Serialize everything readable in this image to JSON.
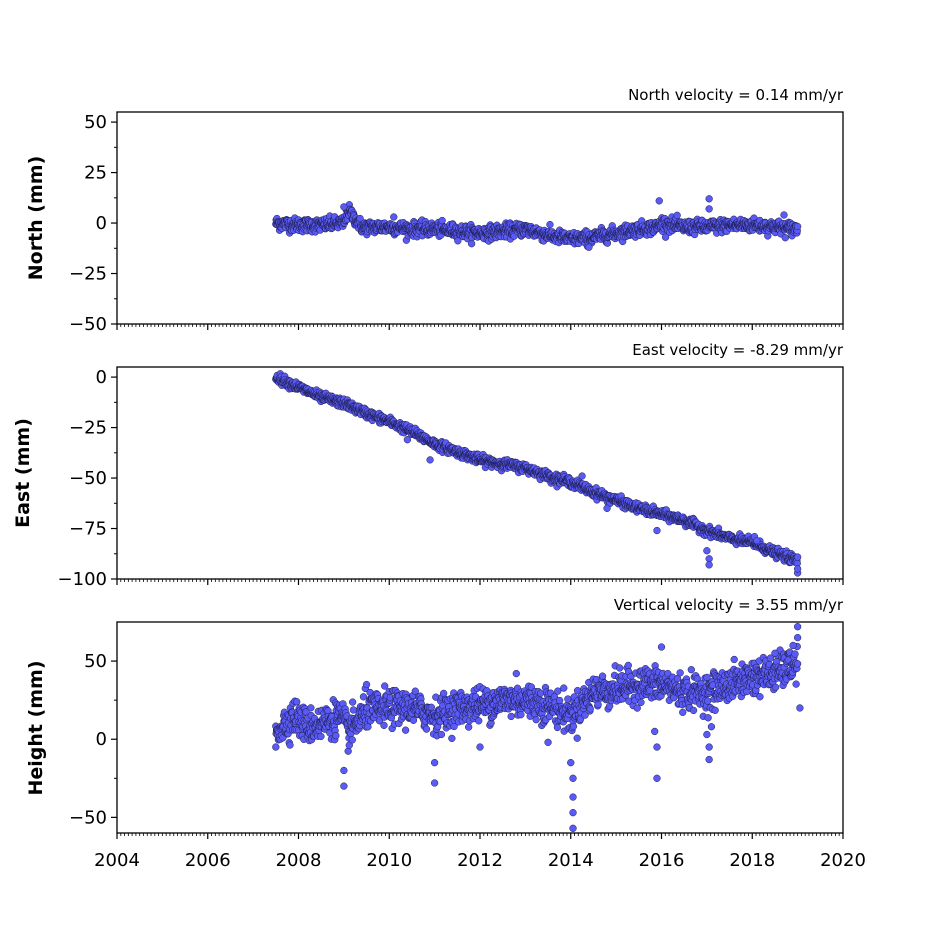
{
  "chart_data": [
    {
      "type": "scatter",
      "key": "north",
      "title": "",
      "xlabel": "",
      "ylabel": "North (mm)",
      "annotation": "North velocity = 0.14 mm/yr",
      "xlim": [
        2004,
        2020
      ],
      "ylim": [
        -50,
        55
      ],
      "yticks": [
        50,
        25,
        0,
        -25,
        -50
      ],
      "ytick_labels": [
        "50",
        "25",
        "0",
        "−25",
        "−50"
      ],
      "show_xtick_labels": false,
      "series": [
        {
          "type": "trend",
          "points": [
            [
              2007.5,
              0
            ],
            [
              2008.0,
              -1
            ],
            [
              2008.5,
              -1
            ],
            [
              2009.0,
              0
            ],
            [
              2009.1,
              6
            ],
            [
              2009.4,
              -2
            ],
            [
              2010.0,
              -2
            ],
            [
              2010.5,
              -3
            ],
            [
              2011.0,
              -3
            ],
            [
              2011.5,
              -4
            ],
            [
              2012.0,
              -5
            ],
            [
              2012.5,
              -4
            ],
            [
              2013.0,
              -3
            ],
            [
              2013.5,
              -6
            ],
            [
              2014.0,
              -8
            ],
            [
              2014.5,
              -7
            ],
            [
              2015.0,
              -5
            ],
            [
              2015.5,
              -3
            ],
            [
              2015.9,
              -2
            ],
            [
              2016.0,
              0
            ],
            [
              2016.5,
              -2
            ],
            [
              2017.0,
              -2
            ],
            [
              2017.5,
              -1
            ],
            [
              2018.0,
              -1
            ],
            [
              2018.5,
              -2
            ],
            [
              2019.0,
              -3
            ]
          ],
          "spread": 3
        },
        {
          "type": "points",
          "points": [
            [
              2009.0,
              8
            ],
            [
              2015.95,
              11
            ],
            [
              2017.05,
              12
            ],
            [
              2017.05,
              7
            ],
            [
              2014.4,
              -12
            ],
            [
              2018.7,
              4
            ],
            [
              2010.1,
              3
            ]
          ]
        }
      ]
    },
    {
      "type": "scatter",
      "key": "east",
      "title": "",
      "xlabel": "",
      "ylabel": "East (mm)",
      "annotation": "East velocity = -8.29 mm/yr",
      "xlim": [
        2004,
        2020
      ],
      "ylim": [
        -100,
        5
      ],
      "yticks": [
        0,
        -25,
        -50,
        -75,
        -100
      ],
      "ytick_labels": [
        "0",
        "−25",
        "−50",
        "−75",
        "−100"
      ],
      "show_xtick_labels": false,
      "series": [
        {
          "type": "trend",
          "points": [
            [
              2007.5,
              0
            ],
            [
              2008.0,
              -5
            ],
            [
              2008.5,
              -10
            ],
            [
              2009.0,
              -13
            ],
            [
              2009.5,
              -18
            ],
            [
              2010.0,
              -22
            ],
            [
              2010.5,
              -27
            ],
            [
              2011.0,
              -33
            ],
            [
              2011.5,
              -37
            ],
            [
              2012.0,
              -41
            ],
            [
              2012.5,
              -43
            ],
            [
              2013.0,
              -45
            ],
            [
              2013.5,
              -49
            ],
            [
              2014.0,
              -52
            ],
            [
              2014.5,
              -57
            ],
            [
              2015.0,
              -61
            ],
            [
              2015.5,
              -65
            ],
            [
              2016.0,
              -68
            ],
            [
              2016.5,
              -71
            ],
            [
              2017.0,
              -76
            ],
            [
              2017.5,
              -80
            ],
            [
              2018.0,
              -82
            ],
            [
              2018.5,
              -87
            ],
            [
              2019.0,
              -91
            ]
          ],
          "spread": 2
        },
        {
          "type": "points",
          "points": [
            [
              2014.25,
              -49
            ],
            [
              2017.05,
              -90
            ],
            [
              2017.05,
              -93
            ],
            [
              2017.0,
              -86
            ],
            [
              2018.05,
              -79
            ],
            [
              2018.1,
              -81
            ],
            [
              2019.0,
              -97
            ],
            [
              2019.0,
              -95
            ],
            [
              2015.9,
              -76
            ],
            [
              2010.9,
              -41
            ],
            [
              2010.4,
              -31
            ],
            [
              2014.8,
              -65
            ]
          ]
        }
      ]
    },
    {
      "type": "scatter",
      "key": "height",
      "title": "",
      "xlabel": "",
      "ylabel": "Height (mm)",
      "annotation": "Vertical velocity = 3.55 mm/yr",
      "xlim": [
        2004,
        2020
      ],
      "ylim": [
        -60,
        75
      ],
      "yticks": [
        50,
        0,
        -50
      ],
      "ytick_labels": [
        "50",
        "0",
        "−50"
      ],
      "show_xtick_labels": true,
      "xticks": [
        2004,
        2006,
        2008,
        2010,
        2012,
        2014,
        2016,
        2018,
        2020
      ],
      "xtick_labels": [
        "2004",
        "2006",
        "2008",
        "2010",
        "2012",
        "2014",
        "2016",
        "2018",
        "2020"
      ],
      "series": [
        {
          "type": "trend",
          "points": [
            [
              2007.5,
              5
            ],
            [
              2007.9,
              15
            ],
            [
              2008.2,
              8
            ],
            [
              2008.5,
              10
            ],
            [
              2008.9,
              15
            ],
            [
              2009.1,
              5
            ],
            [
              2009.5,
              18
            ],
            [
              2010.0,
              20
            ],
            [
              2010.5,
              20
            ],
            [
              2011.0,
              15
            ],
            [
              2011.5,
              20
            ],
            [
              2012.0,
              22
            ],
            [
              2012.5,
              25
            ],
            [
              2013.0,
              25
            ],
            [
              2013.5,
              22
            ],
            [
              2014.0,
              15
            ],
            [
              2014.5,
              30
            ],
            [
              2015.0,
              32
            ],
            [
              2015.5,
              35
            ],
            [
              2016.0,
              35
            ],
            [
              2016.5,
              30
            ],
            [
              2017.0,
              30
            ],
            [
              2017.5,
              35
            ],
            [
              2018.0,
              40
            ],
            [
              2018.5,
              42
            ],
            [
              2019.0,
              48
            ]
          ],
          "spread": 10
        },
        {
          "type": "points",
          "points": [
            [
              2014.05,
              -57
            ],
            [
              2014.05,
              -47
            ],
            [
              2014.05,
              -37
            ],
            [
              2014.05,
              -25
            ],
            [
              2014.0,
              -15
            ],
            [
              2015.9,
              -25
            ],
            [
              2016.0,
              59
            ],
            [
              2017.05,
              -13
            ],
            [
              2017.05,
              -5
            ],
            [
              2017.0,
              3
            ],
            [
              2017.1,
              8
            ],
            [
              2019.0,
              72
            ],
            [
              2019.0,
              65
            ],
            [
              2019.05,
              20
            ],
            [
              2009.0,
              -30
            ],
            [
              2009.0,
              -20
            ],
            [
              2011.0,
              -28
            ],
            [
              2011.0,
              -15
            ],
            [
              2015.9,
              -5
            ],
            [
              2015.85,
              5
            ],
            [
              2012.0,
              -5
            ],
            [
              2013.5,
              -2
            ],
            [
              2007.5,
              -5
            ],
            [
              2018.5,
              55
            ],
            [
              2018.9,
              60
            ],
            [
              2009.5,
              35
            ],
            [
              2012.8,
              42
            ]
          ]
        }
      ]
    }
  ]
}
